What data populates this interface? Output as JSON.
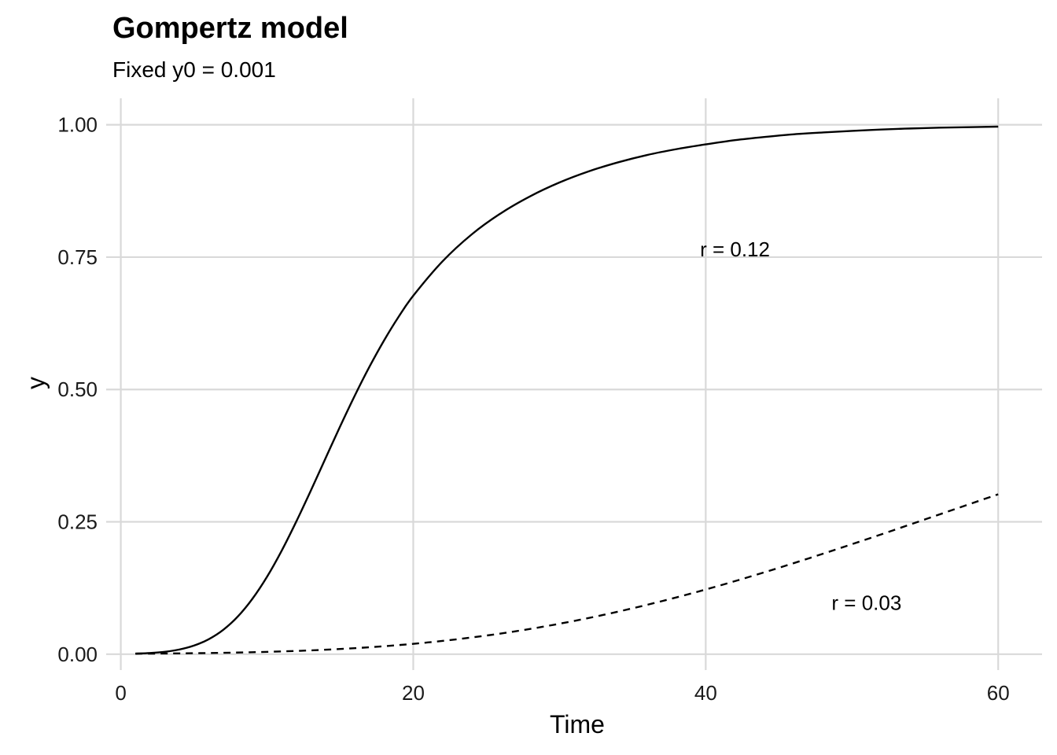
{
  "chart_data": {
    "type": "line",
    "title": "Gompertz model",
    "subtitle": "Fixed y0 = 0.001",
    "xlabel": "Time",
    "ylabel": "y",
    "xlim": [
      -1,
      63
    ],
    "ylim": [
      -0.03,
      1.05
    ],
    "xticks": [
      {
        "value": 0,
        "label": "0"
      },
      {
        "value": 20,
        "label": "20"
      },
      {
        "value": 40,
        "label": "40"
      },
      {
        "value": 60,
        "label": "60"
      }
    ],
    "yticks": [
      {
        "value": 0,
        "label": "0.00"
      },
      {
        "value": 0.25,
        "label": "0.25"
      },
      {
        "value": 0.5,
        "label": "0.50"
      },
      {
        "value": 0.75,
        "label": "0.75"
      },
      {
        "value": 1,
        "label": "1.00"
      }
    ],
    "grid": true,
    "legend": "none",
    "series": [
      {
        "line_style": "solid",
        "color": "#000000",
        "x": [
          1,
          2,
          3,
          4,
          5,
          6,
          7,
          8,
          9,
          10,
          11,
          12,
          13,
          14,
          15,
          16,
          17,
          18,
          19,
          20,
          22,
          24,
          26,
          28,
          30,
          32,
          34,
          36,
          38,
          40,
          42,
          44,
          46,
          48,
          50,
          52,
          54,
          56,
          58,
          60
        ],
        "y": [
          0.001,
          0.0022,
          0.0045,
          0.0088,
          0.0162,
          0.0281,
          0.0459,
          0.0711,
          0.1046,
          0.1462,
          0.1954,
          0.2505,
          0.3093,
          0.37,
          0.4303,
          0.4883,
          0.5427,
          0.5925,
          0.6374,
          0.6771,
          0.742,
          0.793,
          0.833,
          0.865,
          0.891,
          0.912,
          0.929,
          0.943,
          0.954,
          0.963,
          0.971,
          0.977,
          0.982,
          0.9855,
          0.9885,
          0.991,
          0.993,
          0.9945,
          0.9955,
          0.9965
        ]
      },
      {
        "line_style": "dashed",
        "color": "#000000",
        "x": [
          1,
          3,
          5,
          7,
          9,
          11,
          13,
          15,
          17,
          19,
          21,
          23,
          25,
          27,
          29,
          31,
          33,
          35,
          37,
          39,
          41,
          43,
          45,
          47,
          49,
          51,
          53,
          55,
          57,
          59,
          60
        ],
        "y": [
          0.001,
          0.0013,
          0.0018,
          0.0026,
          0.0037,
          0.0052,
          0.0072,
          0.0098,
          0.0131,
          0.0172,
          0.0222,
          0.0282,
          0.0352,
          0.0433,
          0.0525,
          0.0628,
          0.0742,
          0.0867,
          0.1002,
          0.1146,
          0.13,
          0.1462,
          0.1631,
          0.1806,
          0.1986,
          0.217,
          0.2357,
          0.2546,
          0.2736,
          0.2926,
          0.302
        ]
      }
    ],
    "annotations": [
      {
        "text": "r = 0.12",
        "x": 42,
        "y": 0.765
      },
      {
        "text": "r = 0.03",
        "x": 51,
        "y": 0.097
      }
    ]
  }
}
